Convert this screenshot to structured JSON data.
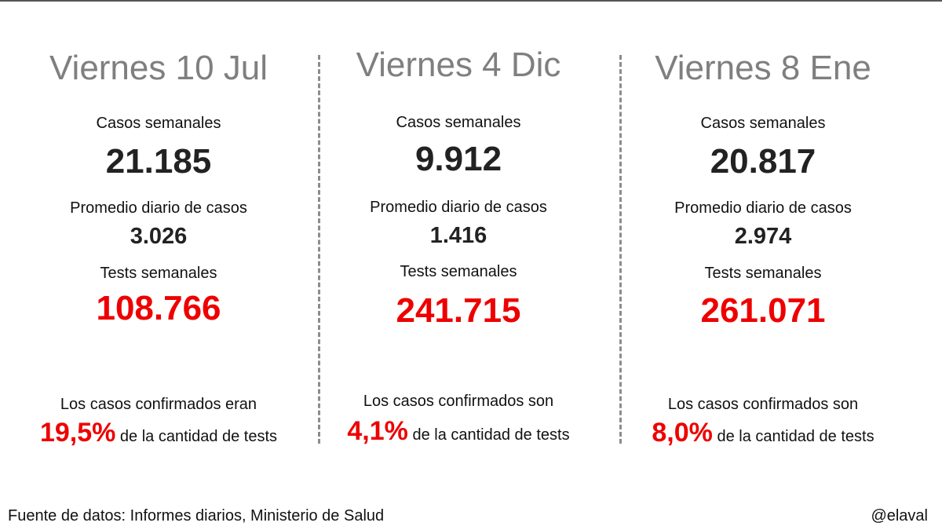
{
  "columns": [
    {
      "date": "Viernes 10 Jul",
      "weekly_cases_label": "Casos semanales",
      "weekly_cases": "21.185",
      "daily_avg_label": "Promedio diario de casos",
      "daily_avg": "3.026",
      "weekly_tests_label": "Tests semanales",
      "weekly_tests": "108.766",
      "confirmed_text": "Los casos confirmados eran",
      "positivity": "19,5%",
      "positivity_suffix": " de la cantidad de tests"
    },
    {
      "date": "Viernes 4 Dic",
      "weekly_cases_label": "Casos semanales",
      "weekly_cases": "9.912",
      "daily_avg_label": "Promedio diario de casos",
      "daily_avg": "1.416",
      "weekly_tests_label": "Tests semanales",
      "weekly_tests": "241.715",
      "confirmed_text": "Los casos confirmados son",
      "positivity": "4,1%",
      "positivity_suffix": " de la cantidad de tests"
    },
    {
      "date": "Viernes 8 Ene",
      "weekly_cases_label": "Casos semanales",
      "weekly_cases": "20.817",
      "daily_avg_label": "Promedio diario de casos",
      "daily_avg": "2.974",
      "weekly_tests_label": "Tests semanales",
      "weekly_tests": "261.071",
      "confirmed_text": "Los casos confirmados son",
      "positivity": "8,0%",
      "positivity_suffix": " de la cantidad de tests"
    }
  ],
  "footer": {
    "source": "Fuente de datos: Informes diarios, Ministerio de Salud",
    "handle": "@elaval"
  },
  "colors": {
    "highlight": "#ee0000",
    "date_gray": "#7f7f7f",
    "divider": "#8c8c8c"
  }
}
